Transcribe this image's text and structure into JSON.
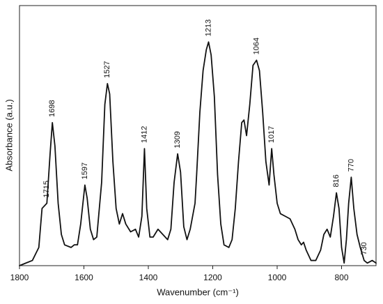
{
  "chart_data": {
    "type": "line",
    "xlabel": "Wavenumber (cm⁻¹)",
    "ylabel": "Absorbance (a.u.)",
    "xlim": [
      1800,
      693
    ],
    "ylim": [
      0,
      1
    ],
    "xticks": [
      1800,
      1600,
      1400,
      1200,
      1000,
      800
    ],
    "x": [
      1800,
      1780,
      1760,
      1740,
      1730,
      1715,
      1705,
      1698,
      1690,
      1680,
      1670,
      1660,
      1640,
      1630,
      1620,
      1610,
      1597,
      1590,
      1580,
      1570,
      1560,
      1545,
      1535,
      1527,
      1520,
      1510,
      1500,
      1490,
      1480,
      1470,
      1455,
      1440,
      1430,
      1420,
      1412,
      1405,
      1395,
      1385,
      1370,
      1355,
      1340,
      1330,
      1320,
      1309,
      1300,
      1290,
      1280,
      1270,
      1255,
      1250,
      1240,
      1230,
      1220,
      1213,
      1205,
      1195,
      1185,
      1175,
      1165,
      1150,
      1140,
      1130,
      1120,
      1110,
      1103,
      1095,
      1085,
      1075,
      1064,
      1055,
      1045,
      1035,
      1025,
      1017,
      1010,
      1000,
      990,
      975,
      960,
      945,
      935,
      925,
      918,
      910,
      895,
      880,
      865,
      855,
      845,
      835,
      825,
      816,
      808,
      800,
      792,
      785,
      778,
      770,
      762,
      752,
      742,
      730,
      720,
      705,
      693
    ],
    "series": [
      {
        "name": "spectrum",
        "color": "#111111",
        "values": [
          0.0,
          0.01,
          0.02,
          0.07,
          0.22,
          0.24,
          0.43,
          0.55,
          0.46,
          0.24,
          0.12,
          0.08,
          0.07,
          0.08,
          0.08,
          0.16,
          0.31,
          0.26,
          0.14,
          0.1,
          0.11,
          0.32,
          0.62,
          0.7,
          0.66,
          0.4,
          0.22,
          0.16,
          0.2,
          0.16,
          0.13,
          0.14,
          0.11,
          0.19,
          0.45,
          0.22,
          0.11,
          0.11,
          0.14,
          0.12,
          0.1,
          0.14,
          0.32,
          0.43,
          0.36,
          0.15,
          0.1,
          0.14,
          0.24,
          0.35,
          0.59,
          0.75,
          0.83,
          0.86,
          0.81,
          0.65,
          0.35,
          0.16,
          0.08,
          0.07,
          0.1,
          0.22,
          0.4,
          0.55,
          0.56,
          0.5,
          0.62,
          0.77,
          0.79,
          0.75,
          0.59,
          0.4,
          0.31,
          0.45,
          0.35,
          0.24,
          0.2,
          0.19,
          0.18,
          0.14,
          0.1,
          0.08,
          0.09,
          0.06,
          0.02,
          0.02,
          0.06,
          0.12,
          0.14,
          0.11,
          0.19,
          0.28,
          0.22,
          0.07,
          0.01,
          0.1,
          0.24,
          0.34,
          0.22,
          0.12,
          0.07,
          0.02,
          0.01,
          0.02,
          0.01
        ]
      }
    ],
    "peak_labels": [
      1715,
      1698,
      1597,
      1527,
      1412,
      1309,
      1213,
      1064,
      1017,
      816,
      770,
      730
    ]
  }
}
